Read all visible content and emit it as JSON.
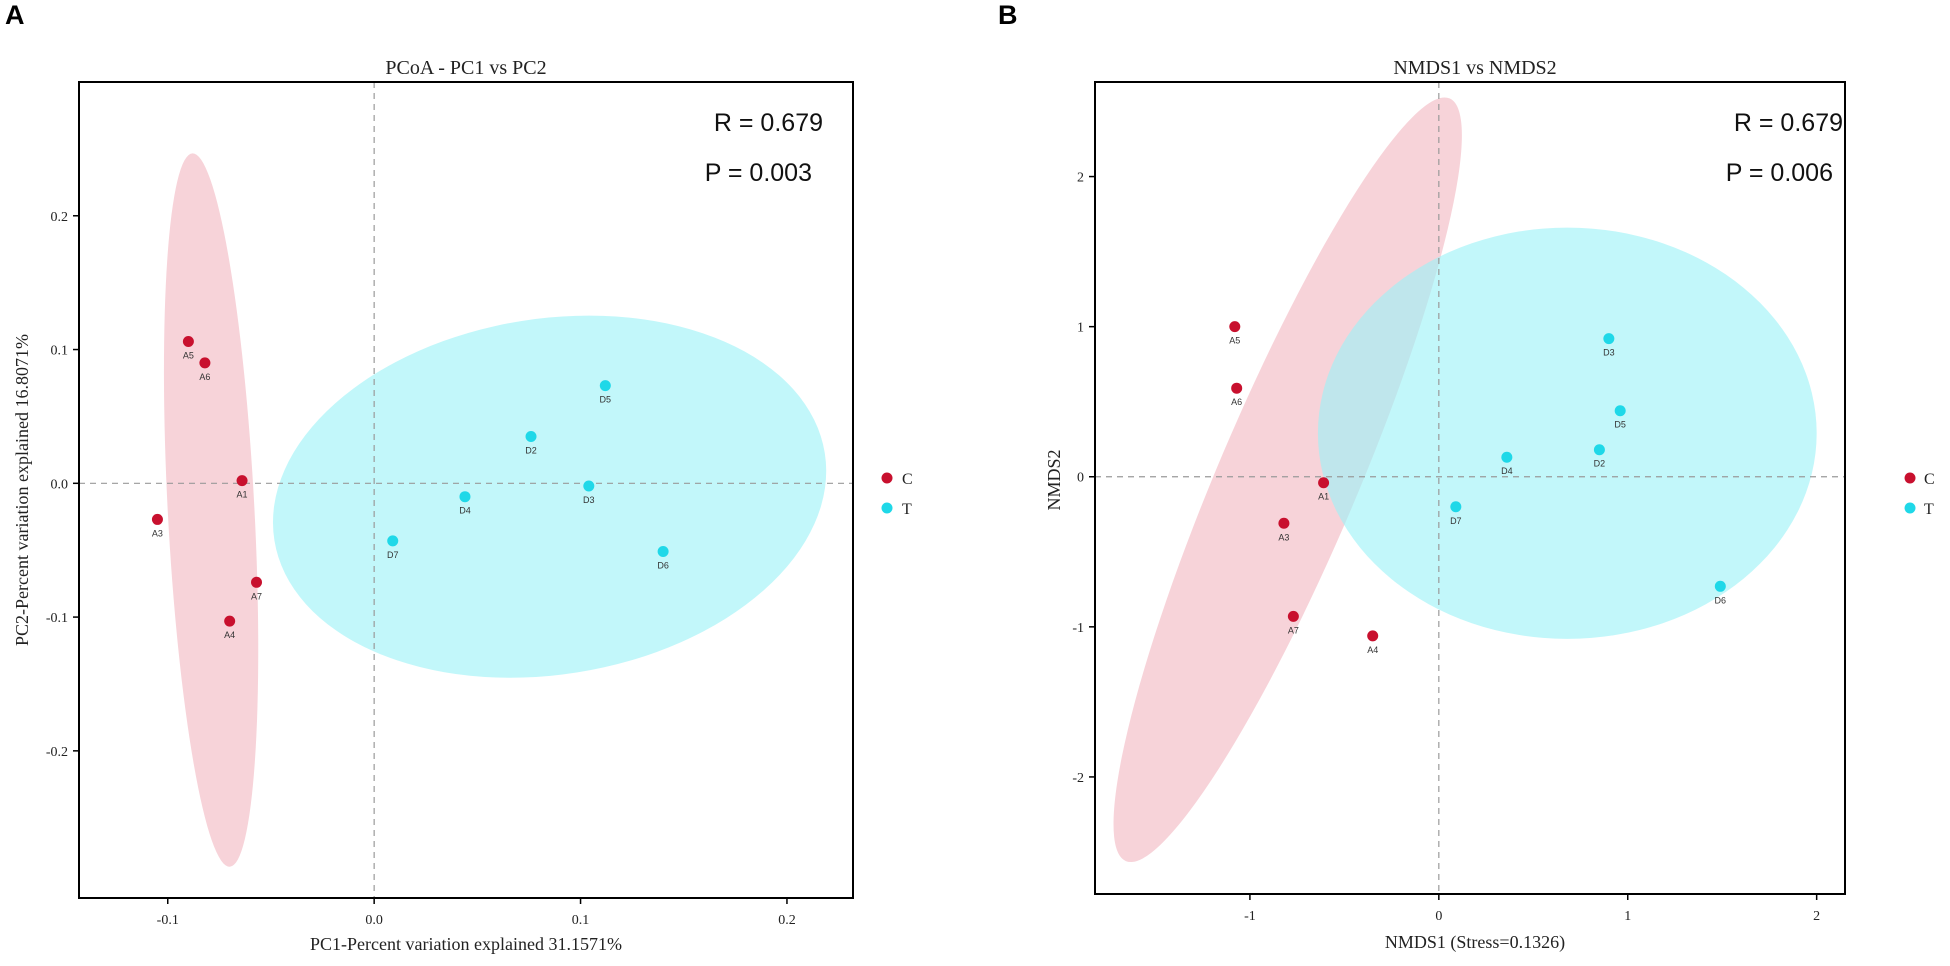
{
  "colors": {
    "C": "#c8102e",
    "T": "#1fd8e8",
    "ellipse_C": "#f2b8c2",
    "ellipse_T": "#9cf2f7"
  },
  "chart_data": [
    {
      "panel": "A",
      "type": "scatter",
      "title": "PCoA - PC1 vs PC2",
      "xlabel": "PC1-Percent variation explained 31.1571%",
      "ylabel": "PC2-Percent variation explained 16.8071%",
      "xlim": [
        -0.143,
        0.232
      ],
      "ylim": [
        -0.31,
        0.3
      ],
      "xticks": [
        -0.1,
        0.0,
        0.1,
        0.2
      ],
      "xtick_labels": [
        "-0.1",
        "0.0",
        "0.1",
        "0.2"
      ],
      "yticks": [
        -0.2,
        -0.1,
        0.0,
        0.1,
        0.2
      ],
      "ytick_labels": [
        "-0.2",
        "-0.1",
        "0.0",
        "0.1",
        "0.2"
      ],
      "stat_r": "R = 0.679",
      "stat_p": "P = 0.003",
      "series": [
        {
          "name": "C",
          "points": [
            {
              "label": "A5",
              "x": -0.09,
              "y": 0.106
            },
            {
              "label": "A6",
              "x": -0.082,
              "y": 0.09
            },
            {
              "label": "A1",
              "x": -0.064,
              "y": 0.002
            },
            {
              "label": "A3",
              "x": -0.105,
              "y": -0.027
            },
            {
              "label": "A7",
              "x": -0.057,
              "y": -0.074
            },
            {
              "label": "A4",
              "x": -0.07,
              "y": -0.103
            }
          ]
        },
        {
          "name": "T",
          "points": [
            {
              "label": "D5",
              "x": 0.112,
              "y": 0.073
            },
            {
              "label": "D2",
              "x": 0.076,
              "y": 0.035
            },
            {
              "label": "D3",
              "x": 0.104,
              "y": -0.002
            },
            {
              "label": "D4",
              "x": 0.044,
              "y": -0.01
            },
            {
              "label": "D7",
              "x": 0.009,
              "y": -0.043
            },
            {
              "label": "D6",
              "x": 0.14,
              "y": -0.051
            }
          ]
        }
      ],
      "confidence_ellipses": [
        {
          "group": "C",
          "cx": -0.079,
          "cy": -0.02,
          "rx": 0.021,
          "ry": 0.267,
          "angle_deg": -3
        },
        {
          "group": "T",
          "cx": 0.085,
          "cy": -0.01,
          "rx": 0.135,
          "ry": 0.133,
          "angle_deg": -9
        }
      ]
    },
    {
      "panel": "B",
      "type": "scatter",
      "title": "NMDS1 vs NMDS2",
      "xlabel": "NMDS1 (Stress=0.1326)",
      "ylabel": "NMDS2",
      "xlim": [
        -1.82,
        2.15
      ],
      "ylim": [
        -2.78,
        2.63
      ],
      "xticks": [
        -1,
        0,
        1,
        2
      ],
      "xtick_labels": [
        "-1",
        "0",
        "1",
        "2"
      ],
      "yticks": [
        -2,
        -1,
        0,
        1,
        2
      ],
      "ytick_labels": [
        "-2",
        "-1",
        "0",
        "1",
        "2"
      ],
      "stat_r": "R = 0.679",
      "stat_p": "P = 0.006",
      "series": [
        {
          "name": "C",
          "points": [
            {
              "label": "A5",
              "x": -1.08,
              "y": 1.0
            },
            {
              "label": "A6",
              "x": -1.07,
              "y": 0.59
            },
            {
              "label": "A1",
              "x": -0.61,
              "y": -0.04
            },
            {
              "label": "A3",
              "x": -0.82,
              "y": -0.31
            },
            {
              "label": "A7",
              "x": -0.77,
              "y": -0.93
            },
            {
              "label": "A4",
              "x": -0.35,
              "y": -1.06
            }
          ]
        },
        {
          "name": "T",
          "points": [
            {
              "label": "D3",
              "x": 0.9,
              "y": 0.92
            },
            {
              "label": "D5",
              "x": 0.96,
              "y": 0.44
            },
            {
              "label": "D2",
              "x": 0.85,
              "y": 0.18
            },
            {
              "label": "D4",
              "x": 0.36,
              "y": 0.13
            },
            {
              "label": "D7",
              "x": 0.09,
              "y": -0.2
            },
            {
              "label": "D6",
              "x": 1.49,
              "y": -0.73
            }
          ]
        }
      ],
      "confidence_ellipses": [
        {
          "group": "C",
          "cx": -0.8,
          "cy": -0.02,
          "rx": 0.37,
          "ry": 2.76,
          "angle_deg": 23
        },
        {
          "group": "T",
          "cx": 0.68,
          "cy": 0.29,
          "rx": 1.32,
          "ry": 1.37,
          "angle_deg": 0
        }
      ]
    }
  ],
  "legend": {
    "items": [
      {
        "group": "C",
        "label": "C"
      },
      {
        "group": "T",
        "label": "T"
      }
    ]
  }
}
